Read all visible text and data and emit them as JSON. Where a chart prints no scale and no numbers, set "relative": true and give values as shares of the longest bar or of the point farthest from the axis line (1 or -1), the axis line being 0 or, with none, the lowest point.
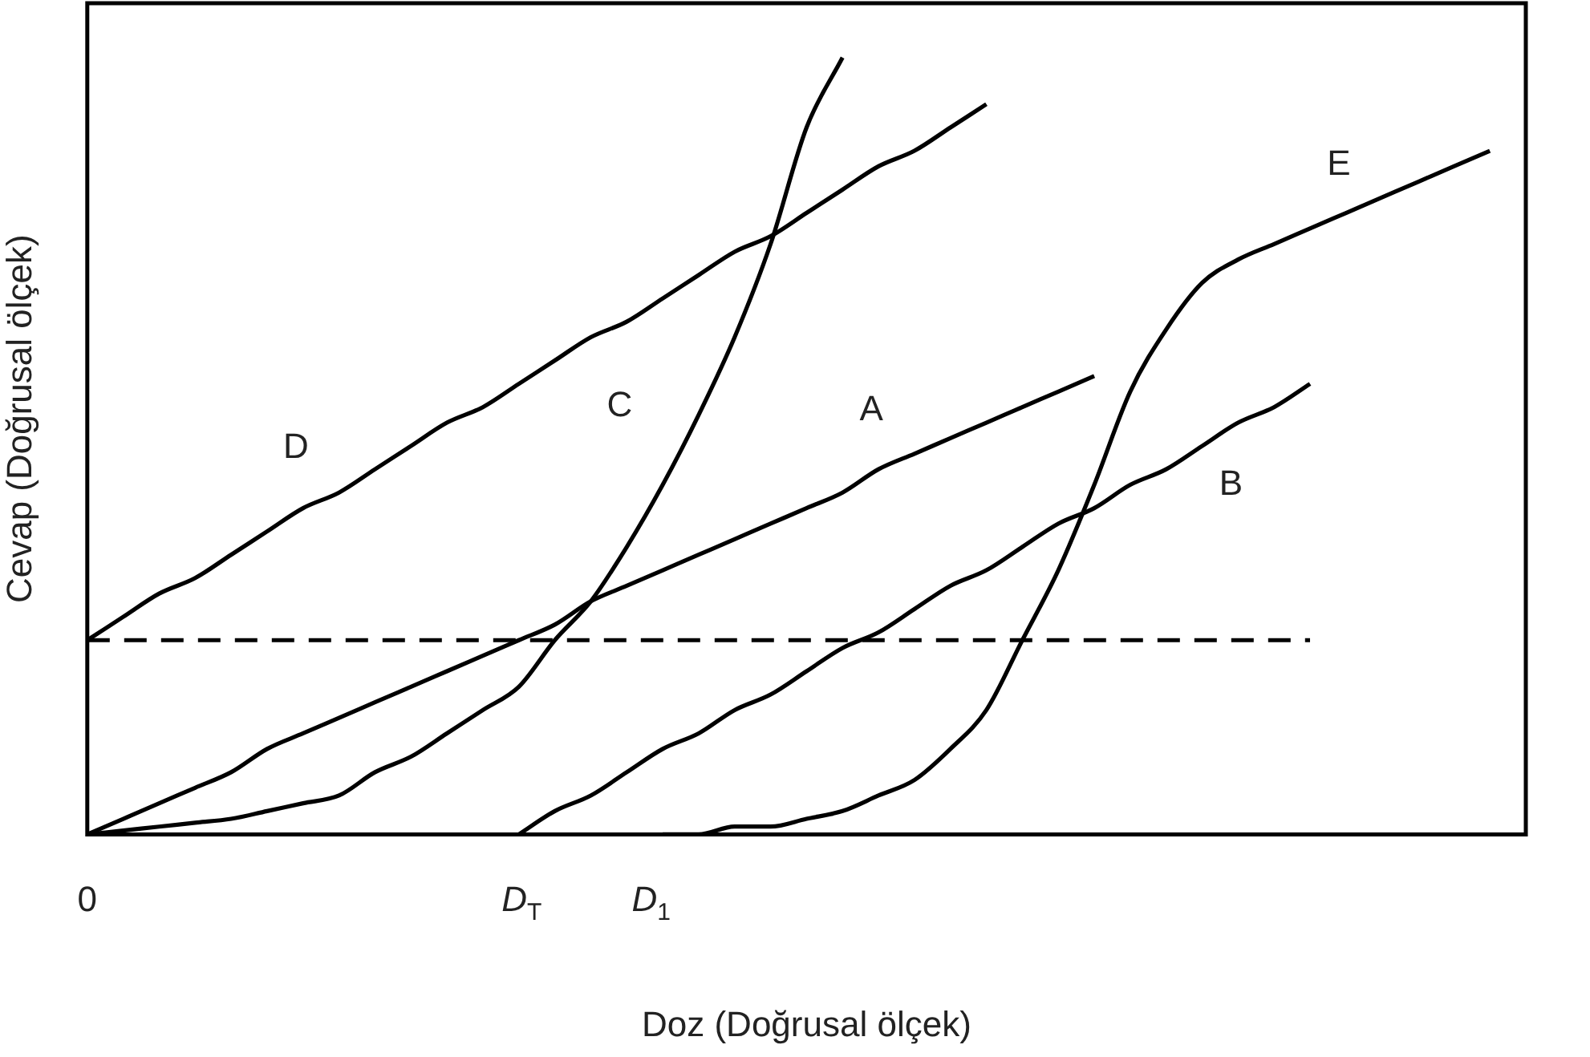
{
  "chart_data": {
    "type": "line",
    "relative": true,
    "xlabel": "Doz (Doğrusal ölçek)",
    "ylabel": "Cevap (Doğrusal ölçek)",
    "annotations": [
      "0",
      "D$_{T}$",
      "D$_{1}$"
    ],
    "grid": false,
    "legend": false,
    "marker": "none",
    "categories": [
      null,
      null,
      null,
      null,
      null,
      null,
      null,
      null,
      null,
      null,
      null,
      null,
      null,
      null,
      null,
      null,
      null,
      null,
      null,
      null,
      null,
      null,
      null,
      null,
      null,
      null,
      null,
      null,
      null,
      null,
      null,
      null,
      null,
      null,
      null,
      null,
      null,
      null,
      null,
      null,
      null
    ],
    "series": [
      {
        "name": "A",
        "color": "#000000",
        "values": [
          0,
          0.02,
          0.04,
          0.06,
          0.08,
          0.11,
          0.13,
          0.15,
          0.17,
          0.19,
          0.21,
          0.23,
          0.25,
          0.27,
          0.3,
          0.32,
          0.34,
          0.36,
          0.38,
          0.4,
          0.42,
          0.44,
          0.47,
          0.49,
          0.51,
          0.53,
          0.55,
          0.57,
          0.59,
          null,
          null,
          null,
          null,
          null,
          null,
          null,
          null,
          null,
          null,
          null,
          null
        ]
      },
      {
        "name": "B",
        "color": "#000000",
        "values": [
          null,
          null,
          null,
          null,
          null,
          null,
          null,
          null,
          null,
          null,
          null,
          null,
          0,
          0.03,
          0.05,
          0.08,
          0.11,
          0.13,
          0.16,
          0.18,
          0.21,
          0.24,
          0.26,
          0.29,
          0.32,
          0.34,
          0.37,
          0.4,
          0.42,
          0.45,
          0.47,
          0.5,
          0.53,
          0.55,
          0.58,
          null,
          null,
          null,
          null,
          null,
          null
        ]
      },
      {
        "name": "C",
        "color": "#000000",
        "values": [
          0,
          0.005,
          0.01,
          0.015,
          0.02,
          0.03,
          0.04,
          0.05,
          0.08,
          0.1,
          0.13,
          0.16,
          0.19,
          0.25,
          0.3,
          0.37,
          0.45,
          0.54,
          0.64,
          0.76,
          0.91,
          1,
          null,
          null,
          null,
          null,
          null,
          null,
          null,
          null,
          null,
          null,
          null,
          null,
          null,
          null,
          null,
          null,
          null,
          null,
          null
        ]
      },
      {
        "name": "D",
        "color": "#000000",
        "values": [
          0.25,
          0.28,
          0.31,
          0.33,
          0.36,
          0.39,
          0.42,
          0.44,
          0.47,
          0.5,
          0.53,
          0.55,
          0.58,
          0.61,
          0.64,
          0.66,
          0.69,
          0.72,
          0.75,
          0.77,
          0.8,
          0.83,
          0.86,
          0.88,
          0.91,
          0.94,
          null,
          null,
          null,
          null,
          null,
          null,
          null,
          null,
          null,
          null,
          null,
          null,
          null,
          null,
          null
        ]
      },
      {
        "name": "E",
        "color": "#000000",
        "values": [
          null,
          null,
          null,
          null,
          null,
          null,
          null,
          null,
          null,
          null,
          null,
          null,
          null,
          null,
          null,
          null,
          0,
          0,
          0.01,
          0.01,
          0.02,
          0.03,
          0.05,
          0.07,
          0.11,
          0.16,
          0.25,
          0.34,
          0.45,
          0.57,
          0.65,
          0.71,
          0.74,
          0.76,
          0.78,
          0.8,
          0.82,
          0.84,
          0.86,
          0.88,
          null
        ]
      },
      {
        "color": "#000000",
        "line_style": "dashed",
        "values": [
          0.25,
          0.25,
          0.25,
          0.25,
          0.25,
          0.25,
          0.25,
          0.25,
          0.25,
          0.25,
          0.25,
          0.25,
          0.25,
          0.25,
          0.25,
          0.25,
          0.25,
          0.25,
          0.25,
          0.25,
          0.25,
          0.25,
          0.25,
          0.25,
          0.25,
          0.25,
          0.25,
          0.25,
          0.25,
          0.25,
          0.25,
          0.25,
          0.25,
          0.25,
          0.25,
          null,
          null,
          null,
          null,
          null,
          null
        ]
      }
    ]
  }
}
